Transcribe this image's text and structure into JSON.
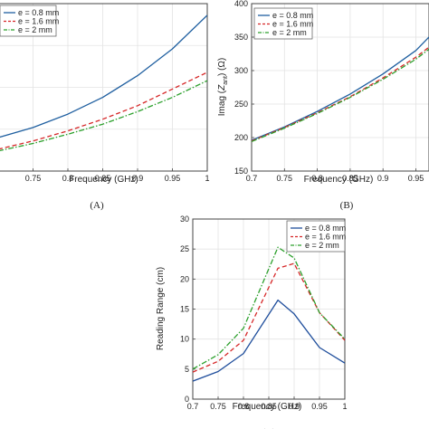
{
  "chart_data": [
    {
      "id": "A",
      "type": "line",
      "panel_label": "(A)",
      "xlabel": "Frequency (GHz)",
      "ylabel": "",
      "xlim": [
        0.7,
        1.0
      ],
      "ylim": [
        0,
        100
      ],
      "x_ticks": [
        0.75,
        0.8,
        0.85,
        0.9,
        0.95,
        1
      ],
      "x_tick_labels": [
        "0.75",
        "0.8",
        "0.85",
        "0.9",
        "0.95",
        "1"
      ],
      "grid": true,
      "legend": "top-left",
      "x": [
        0.7,
        0.75,
        0.8,
        0.85,
        0.9,
        0.95,
        1.0
      ],
      "series": [
        {
          "name": "e = 0.8 mm",
          "color": "#1f5fa0",
          "dash": "solid",
          "values": [
            20,
            26,
            34,
            44,
            57,
            73,
            93
          ]
        },
        {
          "name": "e = 1.6 mm",
          "color": "#d62728",
          "dash": "dashed",
          "values": [
            13,
            18,
            24,
            31,
            39,
            49,
            59
          ]
        },
        {
          "name": "e = 2 mm",
          "color": "#2ca02c",
          "dash": "dashdot",
          "values": [
            12,
            16.5,
            22,
            28,
            35.5,
            44,
            54
          ]
        }
      ]
    },
    {
      "id": "B",
      "type": "line",
      "panel_label": "(B)",
      "xlabel": "Frequency (GHz)",
      "ylabel_parts": [
        "Imag (",
        "Z",
        "ant",
        ") (Ω)"
      ],
      "xlim": [
        0.7,
        0.97
      ],
      "ylim": [
        150,
        400
      ],
      "x_ticks": [
        0.7,
        0.75,
        0.8,
        0.85,
        0.9,
        0.95
      ],
      "x_tick_labels": [
        "0.7",
        "0.75",
        "0.8",
        "0.85",
        "0.9",
        "0.95"
      ],
      "y_ticks": [
        150,
        200,
        250,
        300,
        350,
        400
      ],
      "y_tick_labels": [
        "150",
        "200",
        "250",
        "300",
        "350",
        "400"
      ],
      "grid": true,
      "legend": "top-left",
      "x": [
        0.7,
        0.75,
        0.8,
        0.85,
        0.9,
        0.95,
        0.97
      ],
      "series": [
        {
          "name": "e = 0.8 mm",
          "color": "#1f5fa0",
          "dash": "solid",
          "values": [
            196,
            216,
            239,
            265,
            295,
            330,
            350
          ]
        },
        {
          "name": "e = 1.6 mm",
          "color": "#d62728",
          "dash": "dashed",
          "values": [
            195,
            215,
            237,
            261,
            289,
            320,
            335
          ]
        },
        {
          "name": "e = 2 mm",
          "color": "#2ca02c",
          "dash": "dashdot",
          "values": [
            194,
            214,
            236,
            260,
            287,
            317,
            332
          ]
        }
      ]
    },
    {
      "id": "C",
      "type": "line",
      "panel_label": "(C)",
      "xlabel": "Frequency (GHz)",
      "ylabel": "Reading Range (cm)",
      "xlim": [
        0.7,
        1.0
      ],
      "ylim": [
        0,
        30
      ],
      "x_ticks": [
        0.7,
        0.75,
        0.8,
        0.85,
        0.9,
        0.95,
        1
      ],
      "x_tick_labels": [
        "0.7",
        "0.75",
        "0.8",
        "0.85",
        "0.9",
        "0.95",
        "1"
      ],
      "y_ticks": [
        0,
        5,
        10,
        15,
        20,
        25,
        30
      ],
      "y_tick_labels": [
        "0",
        "5",
        "10",
        "15",
        "20",
        "25",
        "30"
      ],
      "grid": true,
      "legend": "top-right",
      "x": [
        0.7,
        0.75,
        0.8,
        0.868,
        0.9,
        0.95,
        1.0
      ],
      "series": [
        {
          "name": "e = 0.8 mm",
          "color": "#1f4e9c",
          "dash": "solid",
          "values": [
            3.0,
            4.6,
            7.6,
            16.5,
            14.2,
            8.6,
            6.0
          ]
        },
        {
          "name": "e = 1.6 mm",
          "color": "#d62728",
          "dash": "dashed",
          "values": [
            4.5,
            6.3,
            9.8,
            21.8,
            22.6,
            14.4,
            9.8
          ]
        },
        {
          "name": "e = 2 mm",
          "color": "#2ca02c",
          "dash": "dashdot",
          "values": [
            5.0,
            7.4,
            11.8,
            25.3,
            23.5,
            14.4,
            10.0
          ]
        }
      ]
    }
  ]
}
